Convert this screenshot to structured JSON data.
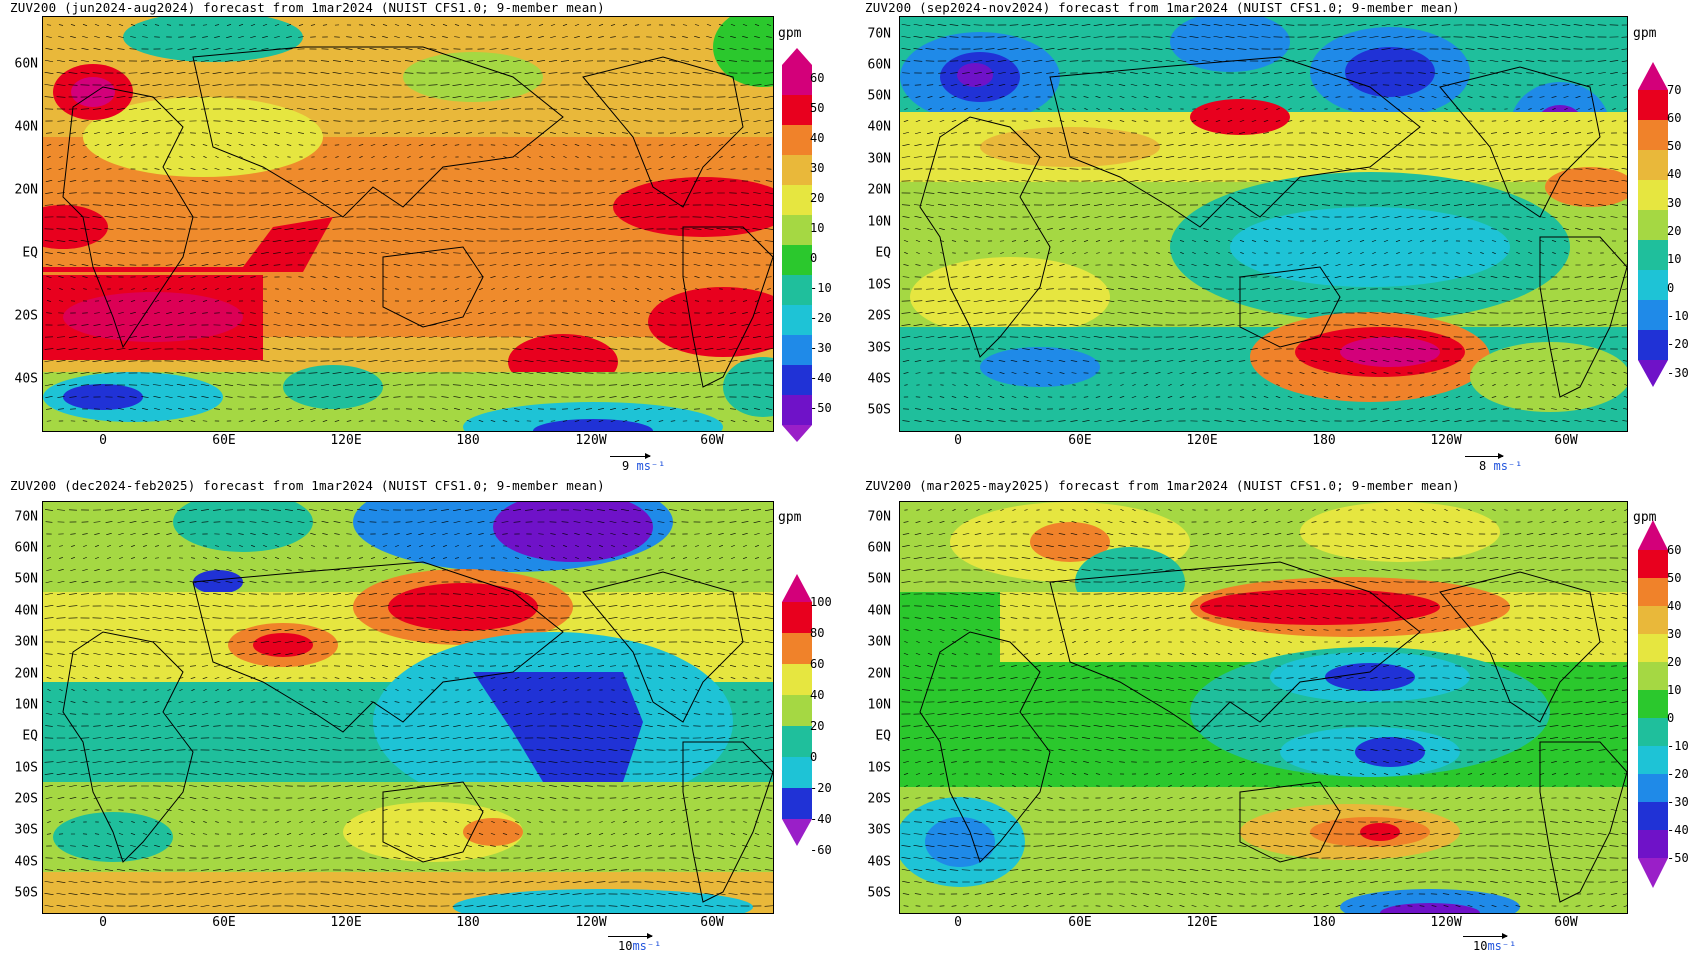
{
  "panels": [
    {
      "title": "ZUV200 (jun2024-aug2024) forecast from 1mar2024 (NUIST CFS1.0; 9-member mean)",
      "unit": "gpm",
      "lat_labels": [
        "60N",
        "40N",
        "20N",
        "EQ",
        "20S",
        "40S"
      ],
      "lon_labels": [
        "0",
        "60E",
        "120E",
        "180",
        "120W",
        "60W"
      ],
      "colorbar_levels": [
        "60",
        "50",
        "40",
        "30",
        "20",
        "10",
        "0",
        "-10",
        "-20",
        "-30",
        "-40",
        "-50"
      ],
      "vector_ref": {
        "value": "9",
        "unit": "ms⁻¹"
      }
    },
    {
      "title": "ZUV200 (sep2024-nov2024) forecast from 1mar2024 (NUIST CFS1.0; 9-member mean)",
      "unit": "gpm",
      "lat_labels": [
        "70N",
        "60N",
        "50N",
        "40N",
        "30N",
        "20N",
        "10N",
        "EQ",
        "10S",
        "20S",
        "30S",
        "40S",
        "50S"
      ],
      "lon_labels": [
        "0",
        "60E",
        "120E",
        "180",
        "120W",
        "60W"
      ],
      "colorbar_levels": [
        "70",
        "60",
        "50",
        "40",
        "30",
        "20",
        "10",
        "0",
        "-10",
        "-20",
        "-30"
      ],
      "vector_ref": {
        "value": "8",
        "unit": "ms⁻¹"
      }
    },
    {
      "title": "ZUV200 (dec2024-feb2025) forecast from 1mar2024 (NUIST CFS1.0; 9-member mean)",
      "unit": "gpm",
      "lat_labels": [
        "70N",
        "60N",
        "50N",
        "40N",
        "30N",
        "20N",
        "10N",
        "EQ",
        "10S",
        "20S",
        "30S",
        "40S",
        "50S"
      ],
      "lon_labels": [
        "0",
        "60E",
        "120E",
        "180",
        "120W",
        "60W"
      ],
      "colorbar_levels": [
        "100",
        "80",
        "60",
        "40",
        "20",
        "0",
        "-20",
        "-40",
        "-60"
      ],
      "vector_ref": {
        "value": "10",
        "unit": "ms⁻¹"
      }
    },
    {
      "title": "ZUV200 (mar2025-may2025) forecast from 1mar2024 (NUIST CFS1.0; 9-member mean)",
      "unit": "gpm",
      "lat_labels": [
        "70N",
        "60N",
        "50N",
        "40N",
        "30N",
        "20N",
        "10N",
        "EQ",
        "10S",
        "20S",
        "30S",
        "40S",
        "50S"
      ],
      "lon_labels": [
        "0",
        "60E",
        "120E",
        "180",
        "120W",
        "60W"
      ],
      "colorbar_levels": [
        "60",
        "50",
        "40",
        "30",
        "20",
        "10",
        "0",
        "-10",
        "-20",
        "-30",
        "-40",
        "-50"
      ],
      "vector_ref": {
        "value": "10",
        "unit": "ms⁻¹"
      }
    }
  ],
  "colors": {
    "ramp_warm_to_cold": [
      "#d3007a",
      "#e8001e",
      "#f0822a",
      "#e9b83a",
      "#e6e640",
      "#a5d843",
      "#2bc82d",
      "#1fbf9c",
      "#1ec3d6",
      "#1f8ae8",
      "#2032d6",
      "#6f12c8",
      "#9a1fc8"
    ]
  }
}
